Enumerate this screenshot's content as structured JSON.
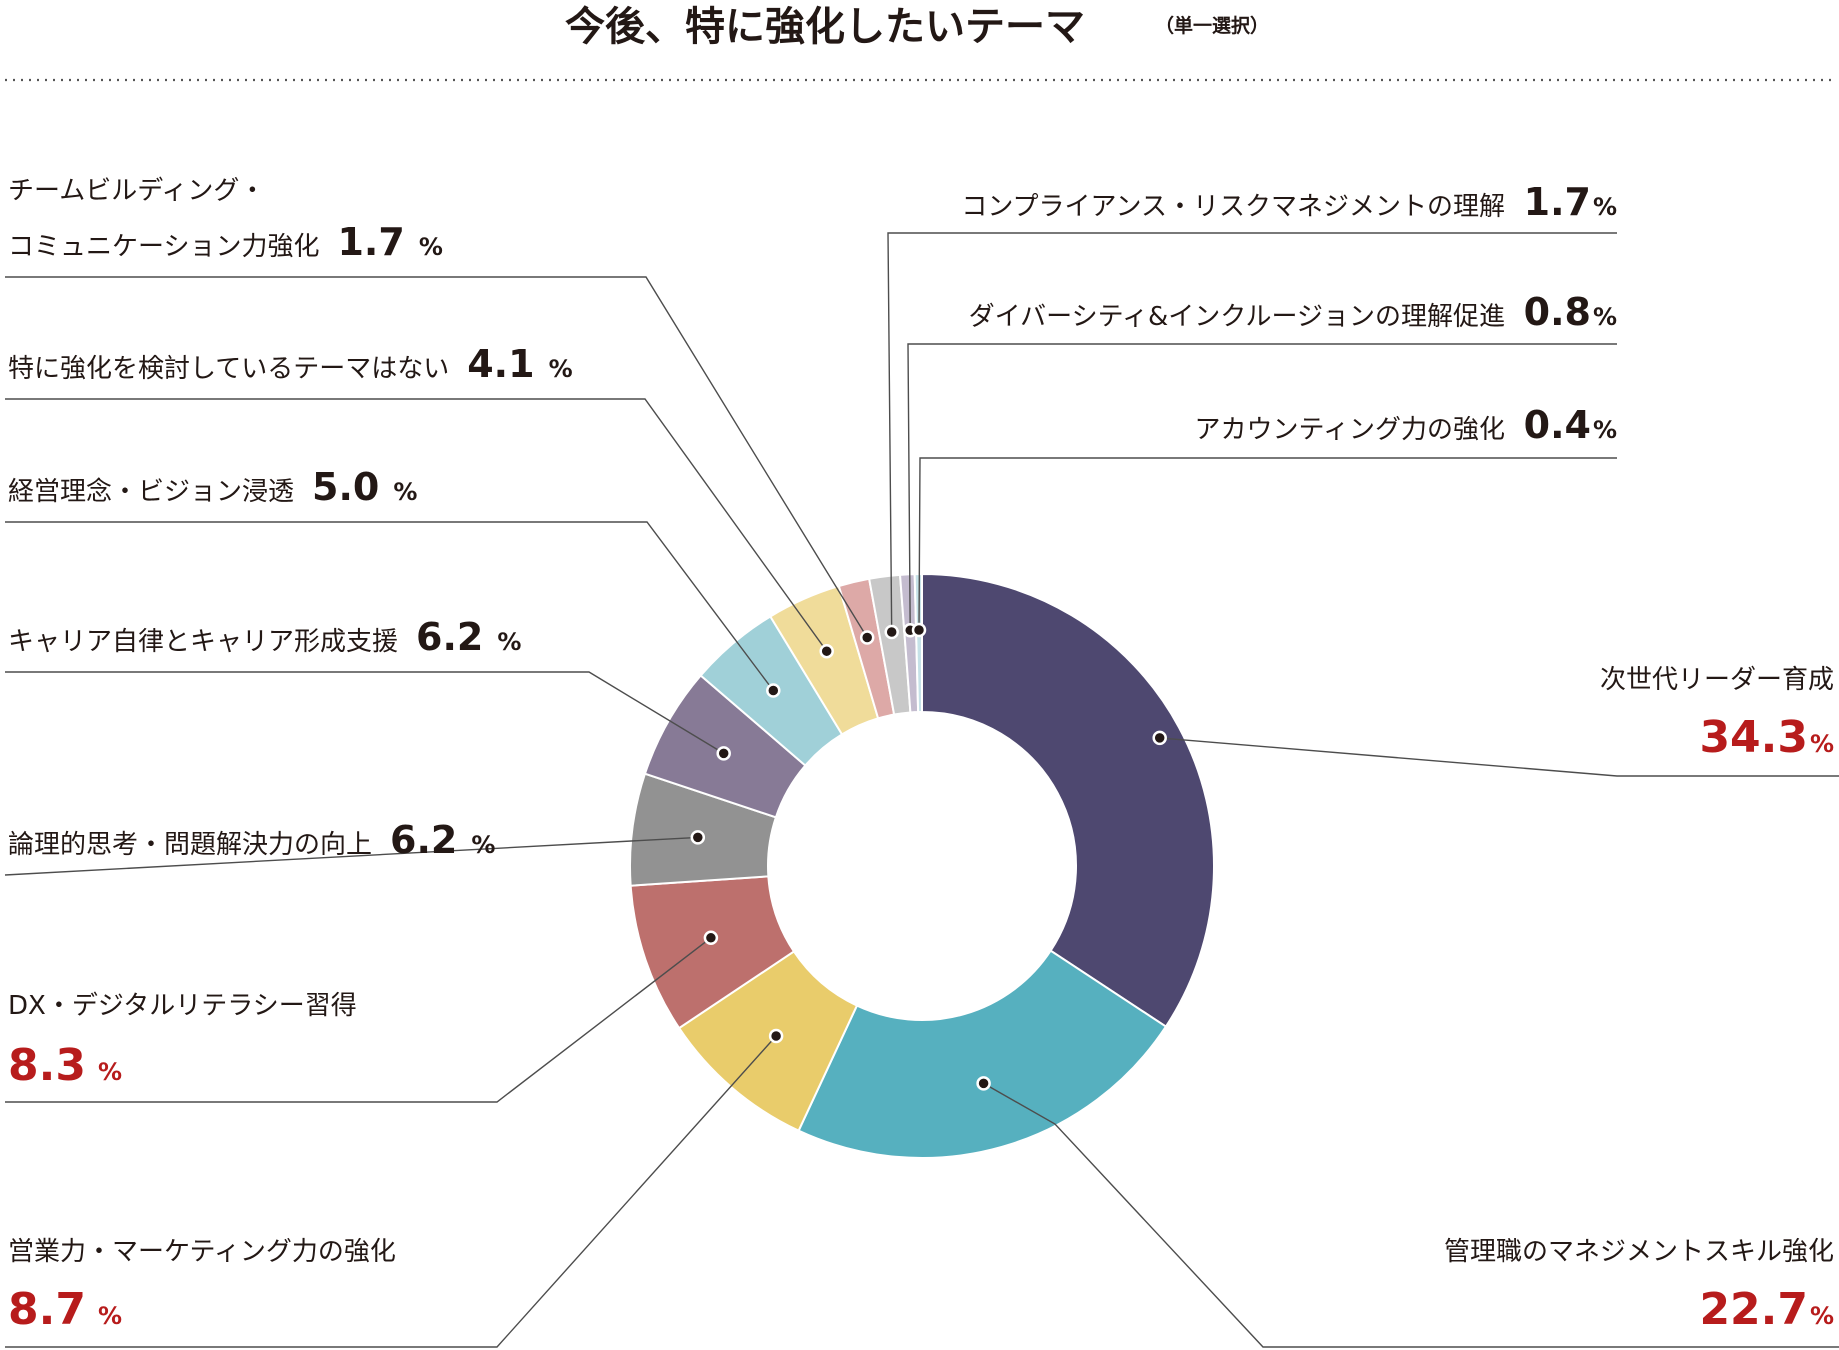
{
  "chart_data": {
    "type": "pie",
    "variant": "donut",
    "title": "今後、特に強化したいテーマ",
    "subtitle": "（単一選択）",
    "unit": "%",
    "slices": [
      {
        "name": "次世代リーダー育成",
        "value": 34.3,
        "value_text": "34.3",
        "color": "#4e4870",
        "highlight": true
      },
      {
        "name": "管理職のマネジメントスキル強化",
        "value": 22.7,
        "value_text": "22.7",
        "color": "#56b0bf",
        "highlight": true
      },
      {
        "name": "営業力・マーケティング力の強化",
        "value": 8.7,
        "value_text": "8.7",
        "color": "#e9cc6b",
        "highlight": true
      },
      {
        "name": "DX・デジタルリテラシー習得",
        "value": 8.3,
        "value_text": "8.3",
        "color": "#bd706d",
        "highlight": true
      },
      {
        "name": "論理的思考・問題解決力の向上",
        "value": 6.2,
        "value_text": "6.2",
        "color": "#929292",
        "highlight": false
      },
      {
        "name": "キャリア自律とキャリア形成支援",
        "value": 6.2,
        "value_text": "6.2",
        "color": "#877a96",
        "highlight": false
      },
      {
        "name": "経営理念・ビジョン浸透",
        "value": 5.0,
        "value_text": "5.0",
        "color": "#a0d0d8",
        "highlight": false
      },
      {
        "name": "特に強化を検討しているテーマはない",
        "value": 4.1,
        "value_text": "4.1",
        "color": "#f0dc9a",
        "highlight": false
      },
      {
        "name": "チームビルディング・コミュニケーション力強化",
        "name_lines": [
          "チームビルディング・",
          "コミュニケーション力強化"
        ],
        "value": 1.7,
        "value_text": "1.7",
        "color": "#dda9a7",
        "highlight": false
      },
      {
        "name": "コンプライアンス・リスクマネジメントの理解",
        "value": 1.7,
        "value_text": "1.7",
        "color": "#c8c8c8",
        "highlight": false
      },
      {
        "name": "ダイバーシティ&インクルージョンの理解促進",
        "value": 0.8,
        "value_text": "0.8",
        "color": "#c4bccf",
        "highlight": false
      },
      {
        "name": "アカウンティング力の強化",
        "value": 0.4,
        "value_text": "0.4",
        "color": "#c6e2e8",
        "highlight": false
      }
    ]
  }
}
